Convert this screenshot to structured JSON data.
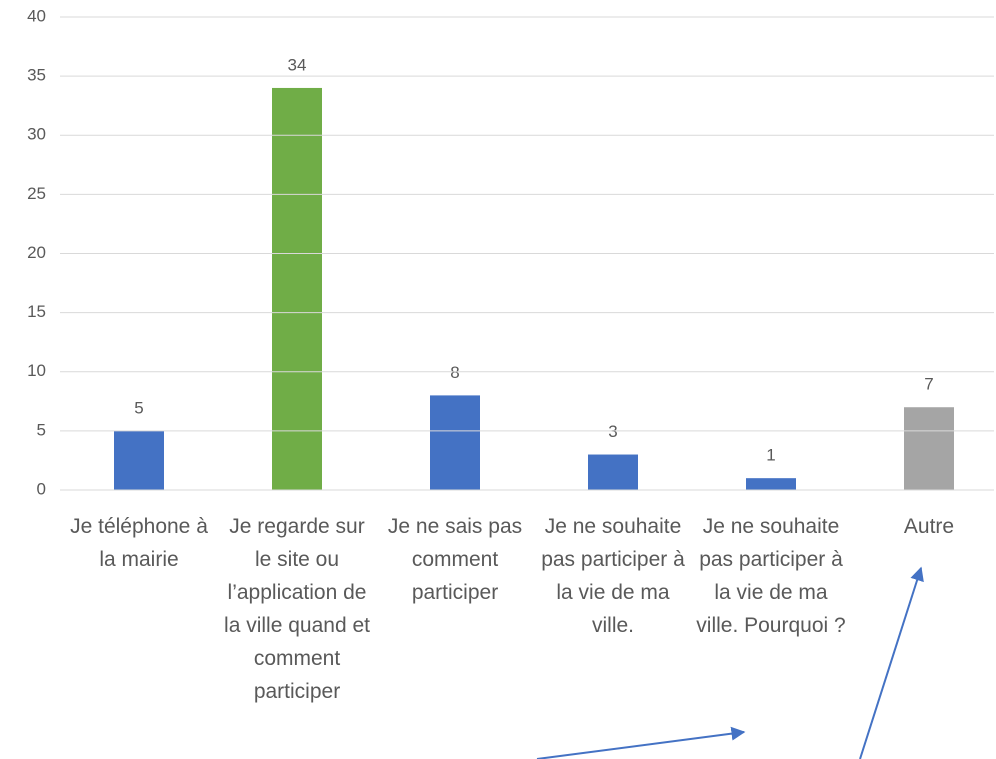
{
  "chart_data": {
    "type": "bar",
    "categories": [
      "Je téléphone à la mairie",
      "Je regarde sur le site ou l’application de la ville quand et comment participer",
      "Je ne sais pas comment participer",
      "Je ne souhaite pas participer à la vie de ma ville.",
      "Je ne souhaite pas participer à la vie de ma ville. Pourquoi ?",
      "Autre"
    ],
    "values": [
      5,
      34,
      8,
      3,
      1,
      7
    ],
    "colors": [
      "#4472c4",
      "#70ad47",
      "#4472c4",
      "#4472c4",
      "#4472c4",
      "#a5a5a5"
    ],
    "ylim": [
      0,
      40
    ],
    "yticks": [
      0,
      5,
      10,
      15,
      20,
      25,
      30,
      35,
      40
    ],
    "grid": true
  }
}
